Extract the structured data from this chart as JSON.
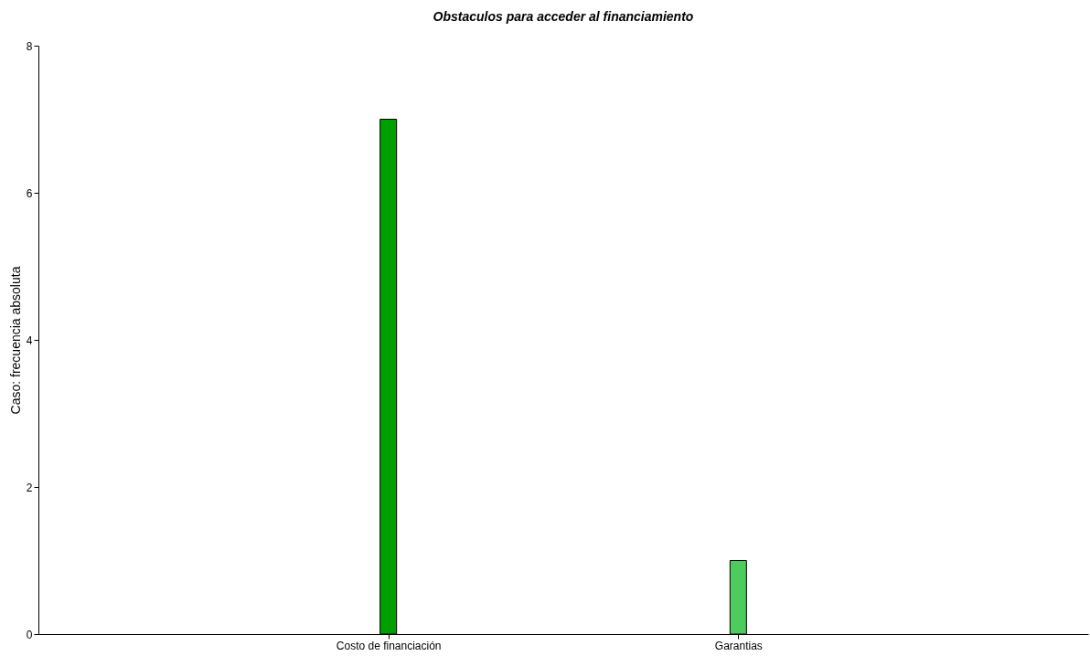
{
  "chart_data": {
    "type": "bar",
    "title": "Obstaculos para acceder al financiamiento",
    "ylabel": "Caso: frecuencia absoluta",
    "categories": [
      "Costo de financiación",
      "Garantias"
    ],
    "values": [
      7,
      1
    ],
    "colors": [
      "#009f00",
      "#4ccc5c"
    ],
    "ylim": [
      0,
      8
    ],
    "yticks": [
      0,
      2,
      4,
      6,
      8
    ],
    "grid": false,
    "legend": false
  }
}
